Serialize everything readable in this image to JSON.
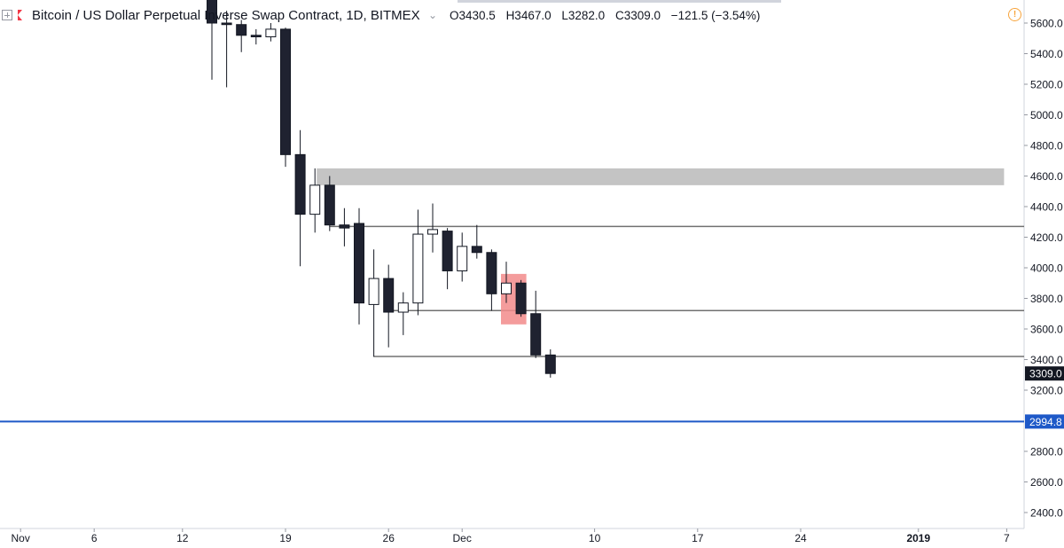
{
  "header": {
    "title": "Bitcoin / US Dollar Perpetual Inverse Swap Contract, 1D, BITMEX",
    "open": "O3430.5",
    "high": "H3467.0",
    "low": "L3282.0",
    "close": "C3309.0",
    "change": "−121.5 (−3.54%)"
  },
  "colors": {
    "bear": "#1f2230",
    "bull": "#ffffff",
    "wick": "#131722",
    "resistance_zone": "#c4c4c4",
    "highlight": "#f28b8b",
    "level_line": "#707070",
    "blue_line": "#1e59c8",
    "warning": "#f7a33a"
  },
  "chart_data": {
    "type": "candlestick",
    "ylim": [
      2300,
      5750
    ],
    "yticks": [
      "5600.0",
      "5400.0",
      "5200.0",
      "5000.0",
      "4800.0",
      "4600.0",
      "4400.0",
      "4200.0",
      "4000.0",
      "3800.0",
      "3600.0",
      "3400.0",
      "3200.0",
      "2800.0",
      "2600.0",
      "2400.0"
    ],
    "xticks": [
      {
        "label": "Nov",
        "date": "2018-11-01"
      },
      {
        "label": "6",
        "date": "2018-11-06"
      },
      {
        "label": "12",
        "date": "2018-11-12"
      },
      {
        "label": "19",
        "date": "2018-11-19"
      },
      {
        "label": "26",
        "date": "2018-11-26"
      },
      {
        "label": "Dec",
        "date": "2018-12-01"
      },
      {
        "label": "10",
        "date": "2018-12-10"
      },
      {
        "label": "17",
        "date": "2018-12-17"
      },
      {
        "label": "24",
        "date": "2018-12-24"
      },
      {
        "label": "2019",
        "date": "2019-01-01"
      },
      {
        "label": "7",
        "date": "2019-01-07"
      }
    ],
    "candles": [
      {
        "date": "2018-11-14",
        "open": 5850,
        "high": 5900,
        "low": 5230,
        "close": 5600
      },
      {
        "date": "2018-11-15",
        "open": 5600,
        "high": 5680,
        "low": 5180,
        "close": 5590
      },
      {
        "date": "2018-11-16",
        "open": 5590,
        "high": 5620,
        "low": 5410,
        "close": 5520
      },
      {
        "date": "2018-11-17",
        "open": 5520,
        "high": 5560,
        "low": 5460,
        "close": 5510
      },
      {
        "date": "2018-11-18",
        "open": 5510,
        "high": 5600,
        "low": 5480,
        "close": 5560
      },
      {
        "date": "2018-11-19",
        "open": 5560,
        "high": 5570,
        "low": 4660,
        "close": 4740
      },
      {
        "date": "2018-11-20",
        "open": 4740,
        "high": 4900,
        "low": 4010,
        "close": 4350
      },
      {
        "date": "2018-11-21",
        "open": 4350,
        "high": 4650,
        "low": 4230,
        "close": 4540
      },
      {
        "date": "2018-11-22",
        "open": 4540,
        "high": 4600,
        "low": 4240,
        "close": 4280
      },
      {
        "date": "2018-11-23",
        "open": 4280,
        "high": 4390,
        "low": 4140,
        "close": 4260
      },
      {
        "date": "2018-11-24",
        "open": 4290,
        "high": 4390,
        "low": 3630,
        "close": 3770
      },
      {
        "date": "2018-11-25",
        "open": 3760,
        "high": 4120,
        "low": 3420,
        "close": 3930
      },
      {
        "date": "2018-11-26",
        "open": 3930,
        "high": 4020,
        "low": 3480,
        "close": 3710
      },
      {
        "date": "2018-11-27",
        "open": 3710,
        "high": 3840,
        "low": 3560,
        "close": 3770
      },
      {
        "date": "2018-11-28",
        "open": 3770,
        "high": 4380,
        "low": 3690,
        "close": 4220
      },
      {
        "date": "2018-11-29",
        "open": 4220,
        "high": 4420,
        "low": 4100,
        "close": 4250
      },
      {
        "date": "2018-11-30",
        "open": 4240,
        "high": 4260,
        "low": 3860,
        "close": 3980
      },
      {
        "date": "2018-12-01",
        "open": 3980,
        "high": 4230,
        "low": 3910,
        "close": 4140
      },
      {
        "date": "2018-12-02",
        "open": 4140,
        "high": 4280,
        "low": 4060,
        "close": 4100
      },
      {
        "date": "2018-12-03",
        "open": 4100,
        "high": 4120,
        "low": 3720,
        "close": 3830
      },
      {
        "date": "2018-12-04",
        "open": 3830,
        "high": 4040,
        "low": 3770,
        "close": 3900
      },
      {
        "date": "2018-12-05",
        "open": 3900,
        "high": 3920,
        "low": 3680,
        "close": 3700
      },
      {
        "date": "2018-12-06",
        "open": 3700,
        "high": 3850,
        "low": 3410,
        "close": 3430
      },
      {
        "date": "2018-12-07",
        "open": 3430,
        "high": 3467,
        "low": 3282,
        "close": 3309
      }
    ],
    "zone": {
      "from": "2018-11-21",
      "to": "2019-01-07",
      "low": 4540,
      "high": 4650
    },
    "lines": [
      {
        "price": 4270,
        "from": "2018-11-22"
      },
      {
        "price": 3720,
        "from": "2018-11-26"
      },
      {
        "price": 3420,
        "from": "2018-11-25"
      }
    ],
    "highlight": {
      "from": "2018-12-04",
      "to": "2018-12-05",
      "low": 3630,
      "high": 3960
    },
    "price_labels": [
      {
        "price": 3309,
        "text": "3309.0",
        "bg": "#131722"
      },
      {
        "price": 2994.8,
        "text": "2994.8",
        "bg": "#1e59c8"
      }
    ],
    "blue_line_price": 2994.8
  }
}
